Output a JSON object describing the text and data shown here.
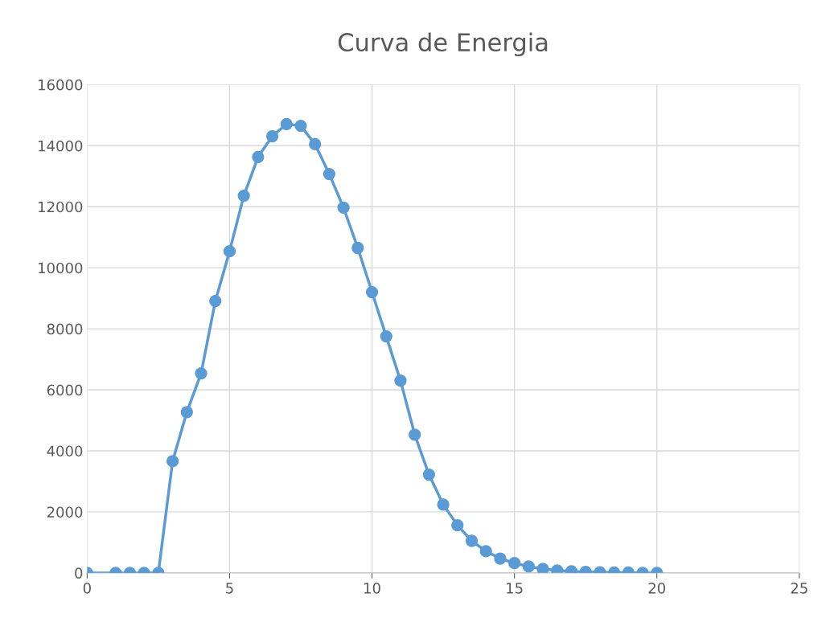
{
  "chart_data": {
    "type": "line",
    "title": "Curva de Energia",
    "x": [
      0,
      1,
      1.5,
      2,
      2.5,
      3,
      3.5,
      4,
      4.5,
      5,
      5.5,
      6,
      6.5,
      7,
      7.5,
      8,
      8.5,
      9,
      9.5,
      10,
      10.5,
      11,
      11.5,
      12,
      12.5,
      13,
      13.5,
      14,
      14.5,
      15,
      15.5,
      16,
      16.5,
      17,
      17.5,
      18,
      18.5,
      19,
      19.5,
      20
    ],
    "series": [
      {
        "color": "#5b9bd5",
        "values": [
          0,
          0,
          0,
          0,
          0,
          3660,
          5270,
          6540,
          8910,
          10540,
          12360,
          13630,
          14310,
          14710,
          14650,
          14050,
          13070,
          11970,
          10650,
          9200,
          7750,
          6300,
          4530,
          3220,
          2240,
          1560,
          1050,
          710,
          470,
          320,
          210,
          130,
          80,
          50,
          30,
          20,
          10,
          10,
          0,
          0
        ]
      }
    ],
    "xlim": [
      0,
      25
    ],
    "xticks": [
      0,
      5,
      10,
      15,
      20,
      25
    ],
    "ylim": [
      0,
      16000
    ],
    "yticks": [
      0,
      2000,
      4000,
      6000,
      8000,
      10000,
      12000,
      14000,
      16000
    ],
    "grid": true,
    "marker": "circle",
    "line_style": "solid",
    "legend": false
  }
}
